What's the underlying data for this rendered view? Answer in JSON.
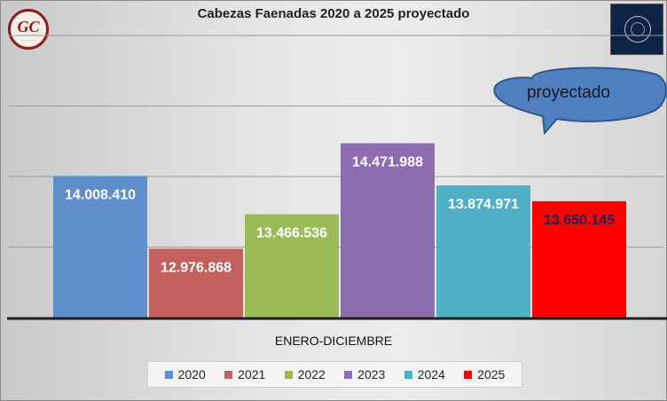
{
  "chart_data": {
    "type": "bar",
    "title": "Cabezas Faenadas 2020 a 2025 proyectado",
    "xlabel": "ENERO-DICIEMBRE",
    "ylabel": "",
    "ylim": [
      12000000,
      16000000
    ],
    "grid": true,
    "legend_position": "bottom",
    "categories": [
      "2020",
      "2021",
      "2022",
      "2023",
      "2024",
      "2025"
    ],
    "values": [
      14008410,
      12976868,
      13466536,
      14471988,
      13874971,
      13650145
    ],
    "labels": [
      "14.008.410",
      "12.976.868",
      "13.466.536",
      "14.471.988",
      "13.874.971",
      "13.650.145"
    ],
    "colors": [
      "#5f8fcb",
      "#c4605e",
      "#9bbb59",
      "#8c6db0",
      "#4fb0c6",
      "#ff0000"
    ],
    "label_colors": [
      "#ffffff",
      "#ffffff",
      "#ffffff",
      "#ffffff",
      "#ffffff",
      "#1f1f5c"
    ],
    "annotation": "proyectado"
  },
  "logos": {
    "left_text": "GC"
  }
}
